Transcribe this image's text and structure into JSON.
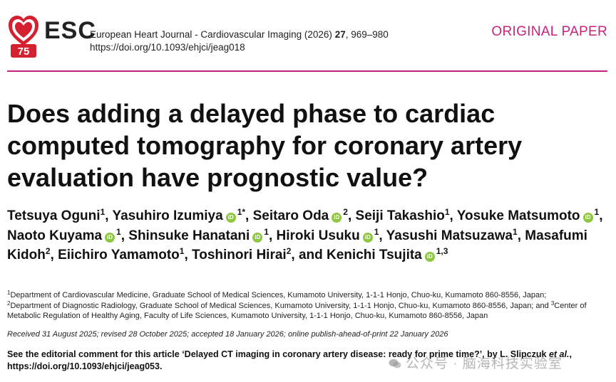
{
  "header": {
    "logo_text": "ESC",
    "logo_badge": "75",
    "journal_prefix": "European Heart Journal - Cardiovascular Imaging (2026) ",
    "volume": "27",
    "pages": ", 969–980",
    "doi": "https://doi.org/10.1093/ehjci/jeag018",
    "paper_type": "ORIGINAL PAPER",
    "accent_color": "#c8237a"
  },
  "title": "Does adding a delayed phase to cardiac computed tomography for coronary artery evaluation have prognostic value?",
  "authors": [
    {
      "name": "Tetsuya Oguni",
      "sup": "1",
      "orcid": false,
      "sep": ", "
    },
    {
      "name": "Yasuhiro Izumiya",
      "sup": "1*",
      "orcid": true,
      "sep": ", "
    },
    {
      "name": "Seitaro Oda",
      "sup": "2",
      "orcid": true,
      "sep": ", "
    },
    {
      "name": "Seiji Takashio",
      "sup": "1",
      "orcid": false,
      "sep": ", "
    },
    {
      "name": "Yosuke Matsumoto",
      "sup": "1",
      "orcid": true,
      "sep": ", "
    },
    {
      "name": "Naoto Kuyama",
      "sup": "1",
      "orcid": true,
      "sep": ", "
    },
    {
      "name": "Shinsuke Hanatani",
      "sup": "1",
      "orcid": true,
      "sep": ", "
    },
    {
      "name": "Hiroki Usuku",
      "sup": "1",
      "orcid": true,
      "sep": ", "
    },
    {
      "name": "Yasushi Matsuzawa",
      "sup": "1",
      "orcid": false,
      "sep": ", "
    },
    {
      "name": "Masafumi Kidoh",
      "sup": "2",
      "orcid": false,
      "sep": ", "
    },
    {
      "name": "Eiichiro Yamamoto",
      "sup": "1",
      "orcid": false,
      "sep": ", "
    },
    {
      "name": "Toshinori Hirai",
      "sup": "2",
      "orcid": false,
      "sep": ", and "
    },
    {
      "name": "Kenichi Tsujita",
      "sup": "1,3",
      "orcid": true,
      "sep": ""
    }
  ],
  "orcid_label": "iD",
  "affiliations": {
    "a1_num": "1",
    "a1": "Department of Cardiovascular Medicine, Graduate School of Medical Sciences, Kumamoto University, 1-1-1 Honjo, Chuo-ku, Kumamoto 860-8556, Japan;",
    "a2_num": "2",
    "a2": "Department of Diagnostic Radiology, Graduate School of Medical Sciences, Kumamoto University, 1-1-1 Honjo, Chuo-ku, Kumamoto 860-8556, Japan; and ",
    "a3_num": "3",
    "a3": "Center of Metabolic Regulation of Healthy Aging, Faculty of Life Sciences, Kumamoto University, 1-1-1 Honjo, Chuo-ku, Kumamoto 860-8556, Japan"
  },
  "received": "Received 31 August 2025; revised 28 October 2025; accepted 18 January 2026; online publish-ahead-of-print 22 January 2026",
  "editorial": {
    "text": "See the editorial comment for this article ‘Delayed CT imaging in coronary artery disease: ready for prime time?’, by L. Slipczuk ",
    "etal": "et al.",
    "doi": ", https://doi.org/10.1093/ehjci/jeag053."
  },
  "watermark": "公众号 · 脑海科技实验室"
}
